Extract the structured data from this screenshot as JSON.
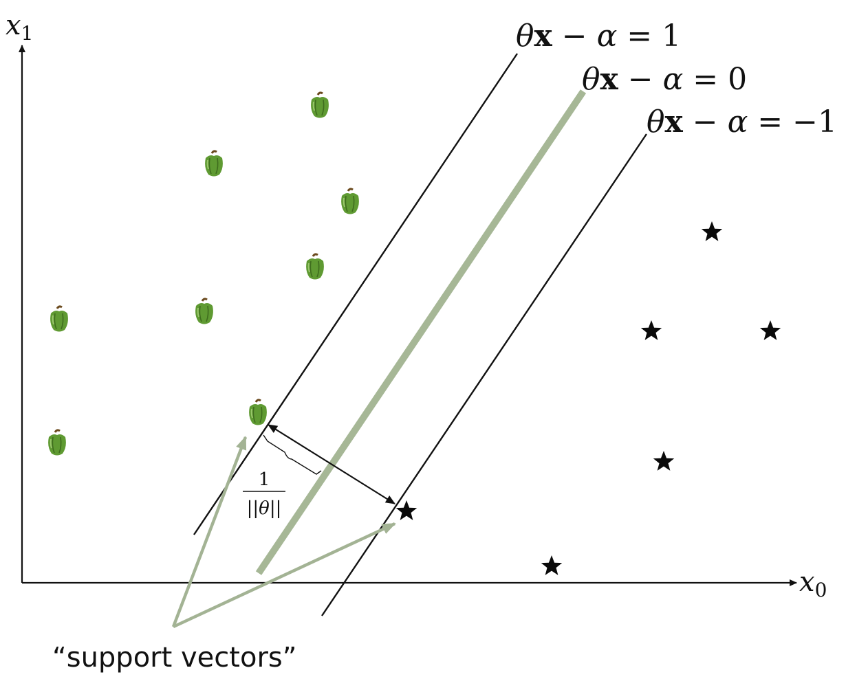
{
  "axes": {
    "x_label_var": "x",
    "x_label_sub": "0",
    "y_label_var": "x",
    "y_label_sub": "1"
  },
  "lines": {
    "upper": {
      "theta": "θ",
      "x": "x",
      "rel": " − α = ",
      "value": "1"
    },
    "middle": {
      "theta": "θ",
      "x": "x",
      "rel": " − α = ",
      "value": "0"
    },
    "lower": {
      "theta": "θ",
      "x": "x",
      "rel": " − α = ",
      "value": "−1"
    }
  },
  "margin_label": {
    "numerator": "1",
    "denominator": "||θ||"
  },
  "caption": "“support vectors”",
  "colors": {
    "separator": "#a6b796",
    "support_arrow": "#a3b394",
    "star": "#0a0a0a",
    "pepper_body": "#5f9a32",
    "pepper_stem": "#6b4a1e"
  },
  "icons": {
    "class_a": "green-pepper-icon",
    "class_b": "star-icon"
  }
}
